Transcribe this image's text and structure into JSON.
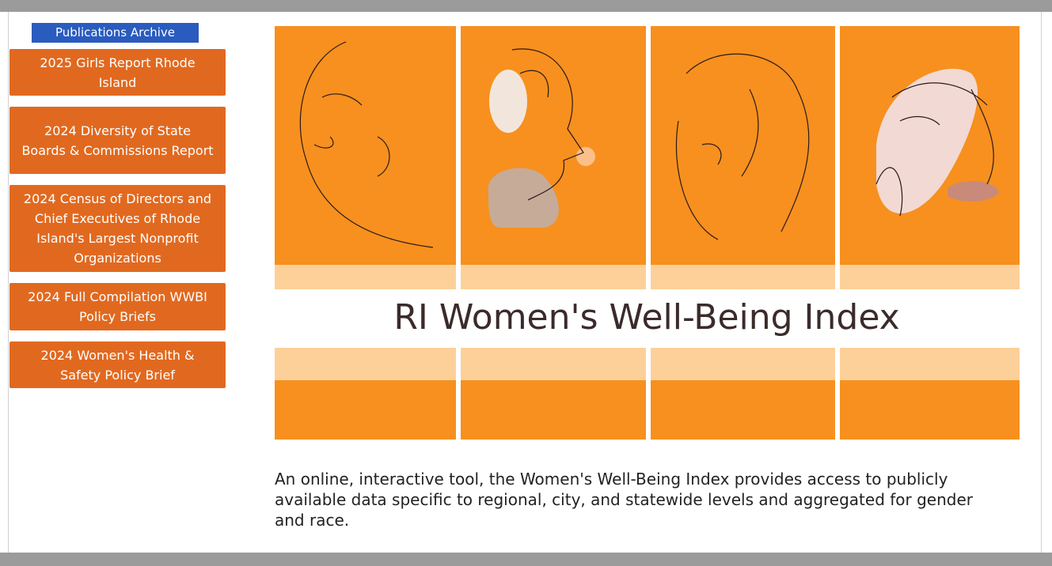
{
  "sidebar": {
    "title": "Publications Archive",
    "links": [
      "2025 Girls Report Rhode Island",
      "2024 Diversity of State Boards & Commissions Report",
      "2024 Census of Directors and Chief Executives of Rhode Island's Largest Nonprofit Organizations",
      "2024 Full Compilation WWBI Policy Briefs",
      "2024 Women's Health & Safety Policy Brief"
    ]
  },
  "banner": {
    "title": "RI Women's Well-Being Index"
  },
  "description": "An online, interactive tool, the Women's Well-Being Index provides access to publicly available data specific to regional, city, and statewide levels and aggregated for gender and race."
}
